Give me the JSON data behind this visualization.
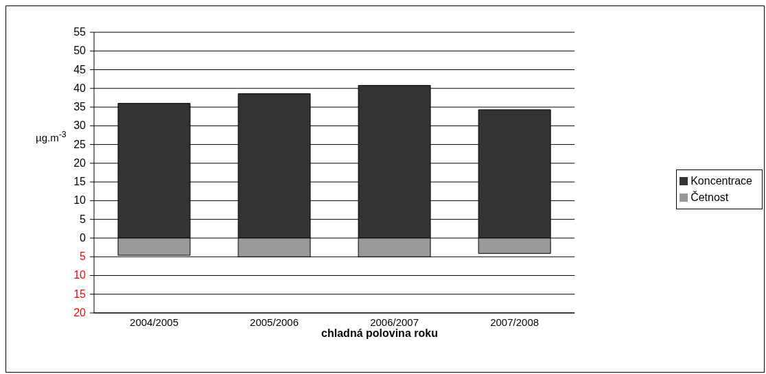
{
  "chart_data": {
    "type": "bar",
    "stacked": true,
    "xlabel": "chladná polovina roku",
    "ylabel": "µg.m$^{-3}$",
    "categories": [
      "2004/2005",
      "2005/2006",
      "2006/2007",
      "2007/2008"
    ],
    "series": [
      {
        "name": "Koncentrace",
        "color": "#333333",
        "values": [
          36,
          38.6,
          40.8,
          34.3
        ]
      },
      {
        "name": "Četnost",
        "color": "#999999",
        "values": [
          -4.6,
          -5,
          -5,
          -4.1
        ]
      }
    ],
    "ylim": [
      -20,
      55
    ],
    "yticks": [
      {
        "value": -20,
        "label": "20"
      },
      {
        "value": -15,
        "label": "15"
      },
      {
        "value": -10,
        "label": "10"
      },
      {
        "value": -5,
        "label": "5"
      },
      0,
      5,
      10,
      15,
      20,
      25,
      30,
      35,
      40,
      45,
      50,
      55
    ],
    "grid": "y",
    "legend": "right"
  }
}
